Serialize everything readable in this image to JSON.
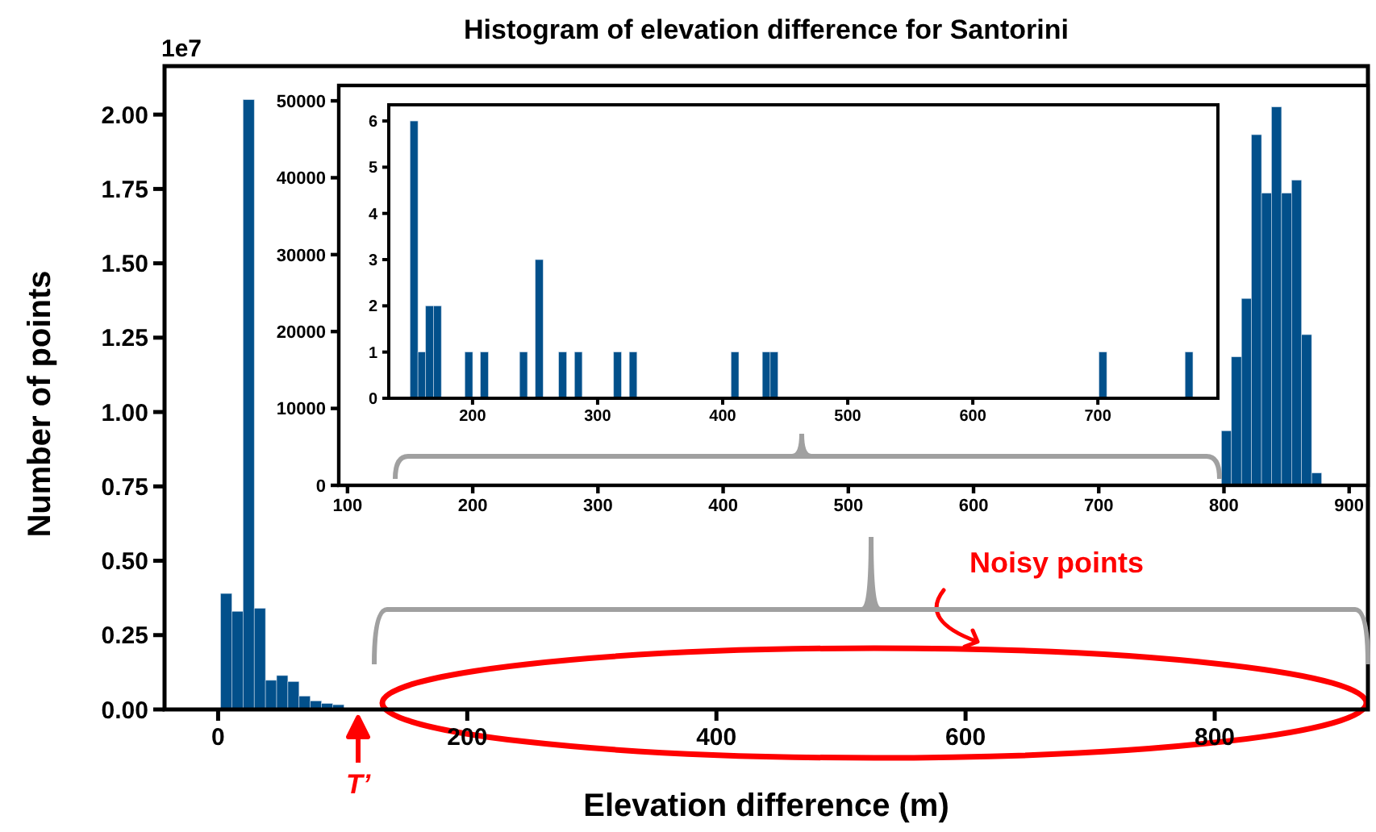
{
  "chart_data": [
    {
      "type": "histogram",
      "title": "Histogram of elevation difference for Santorini",
      "xlabel": "Elevation difference (m)",
      "ylabel": "Number of points",
      "color": "#02508b",
      "bins": [
        2,
        11,
        20,
        29,
        38,
        47,
        56,
        65,
        74,
        83,
        92,
        101
      ],
      "values": [
        0.39,
        0.33,
        2.05,
        0.34,
        0.098,
        0.114,
        0.094,
        0.045,
        0.029,
        0.02,
        0.016
      ],
      "xlim": [
        -43,
        923
      ],
      "ylim": [
        0,
        2.163
      ],
      "xticks": [
        0,
        200,
        400,
        600,
        800
      ],
      "yticks": [
        {
          "value": 0,
          "label": "0.00"
        },
        {
          "value": 0.25,
          "label": "0.25"
        },
        {
          "value": 0.5,
          "label": "0.50"
        },
        {
          "value": 0.75,
          "label": "0.75"
        },
        {
          "value": 1,
          "label": "1.00"
        },
        {
          "value": 1.25,
          "label": "1.25"
        },
        {
          "value": 1.5,
          "label": "1.50"
        },
        {
          "value": 1.75,
          "label": "1.75"
        },
        {
          "value": 2,
          "label": "2.00"
        }
      ],
      "annotations": [
        "1e7",
        "Noisy points",
        "T’"
      ]
    },
    {
      "type": "histogram",
      "color": "#02508b",
      "bins": [
        798,
        806,
        814,
        822,
        830,
        838,
        846,
        854,
        862,
        870,
        878
      ],
      "values": [
        7100,
        16700,
        24300,
        45600,
        38000,
        49200,
        38000,
        39700,
        19600,
        1600
      ],
      "xlim": [
        93,
        915
      ],
      "ylim": [
        0,
        52000
      ],
      "xticks": [
        100,
        200,
        300,
        400,
        500,
        600,
        700,
        800,
        900
      ],
      "yticks": [
        0,
        10000,
        20000,
        30000,
        40000,
        50000
      ]
    },
    {
      "type": "histogram",
      "color": "#02508b",
      "bins": [
        150,
        156.3,
        162.5,
        168.8,
        175,
        193.8,
        200.1,
        206.3,
        212.6,
        237.6,
        243.9,
        250.2,
        256.4,
        268.9,
        275.2,
        281.5,
        287.7,
        312.8,
        319,
        325.3,
        331.5,
        406.7,
        412.9,
        431.7,
        438,
        444.2,
        700.9,
        707.1,
        769.7,
        776
      ],
      "values": [
        6,
        1,
        2,
        2,
        0,
        1,
        0,
        1,
        0,
        1,
        0,
        3,
        0,
        1,
        0,
        1,
        0,
        1,
        0,
        1,
        0,
        1,
        0,
        1,
        1,
        0,
        1,
        0,
        1
      ],
      "xlim": [
        133,
        796
      ],
      "ylim": [
        0,
        6.35
      ],
      "xticks": [
        200,
        300,
        400,
        500,
        600,
        700
      ],
      "yticks": [
        0,
        1,
        2,
        3,
        4,
        5,
        6
      ]
    }
  ]
}
